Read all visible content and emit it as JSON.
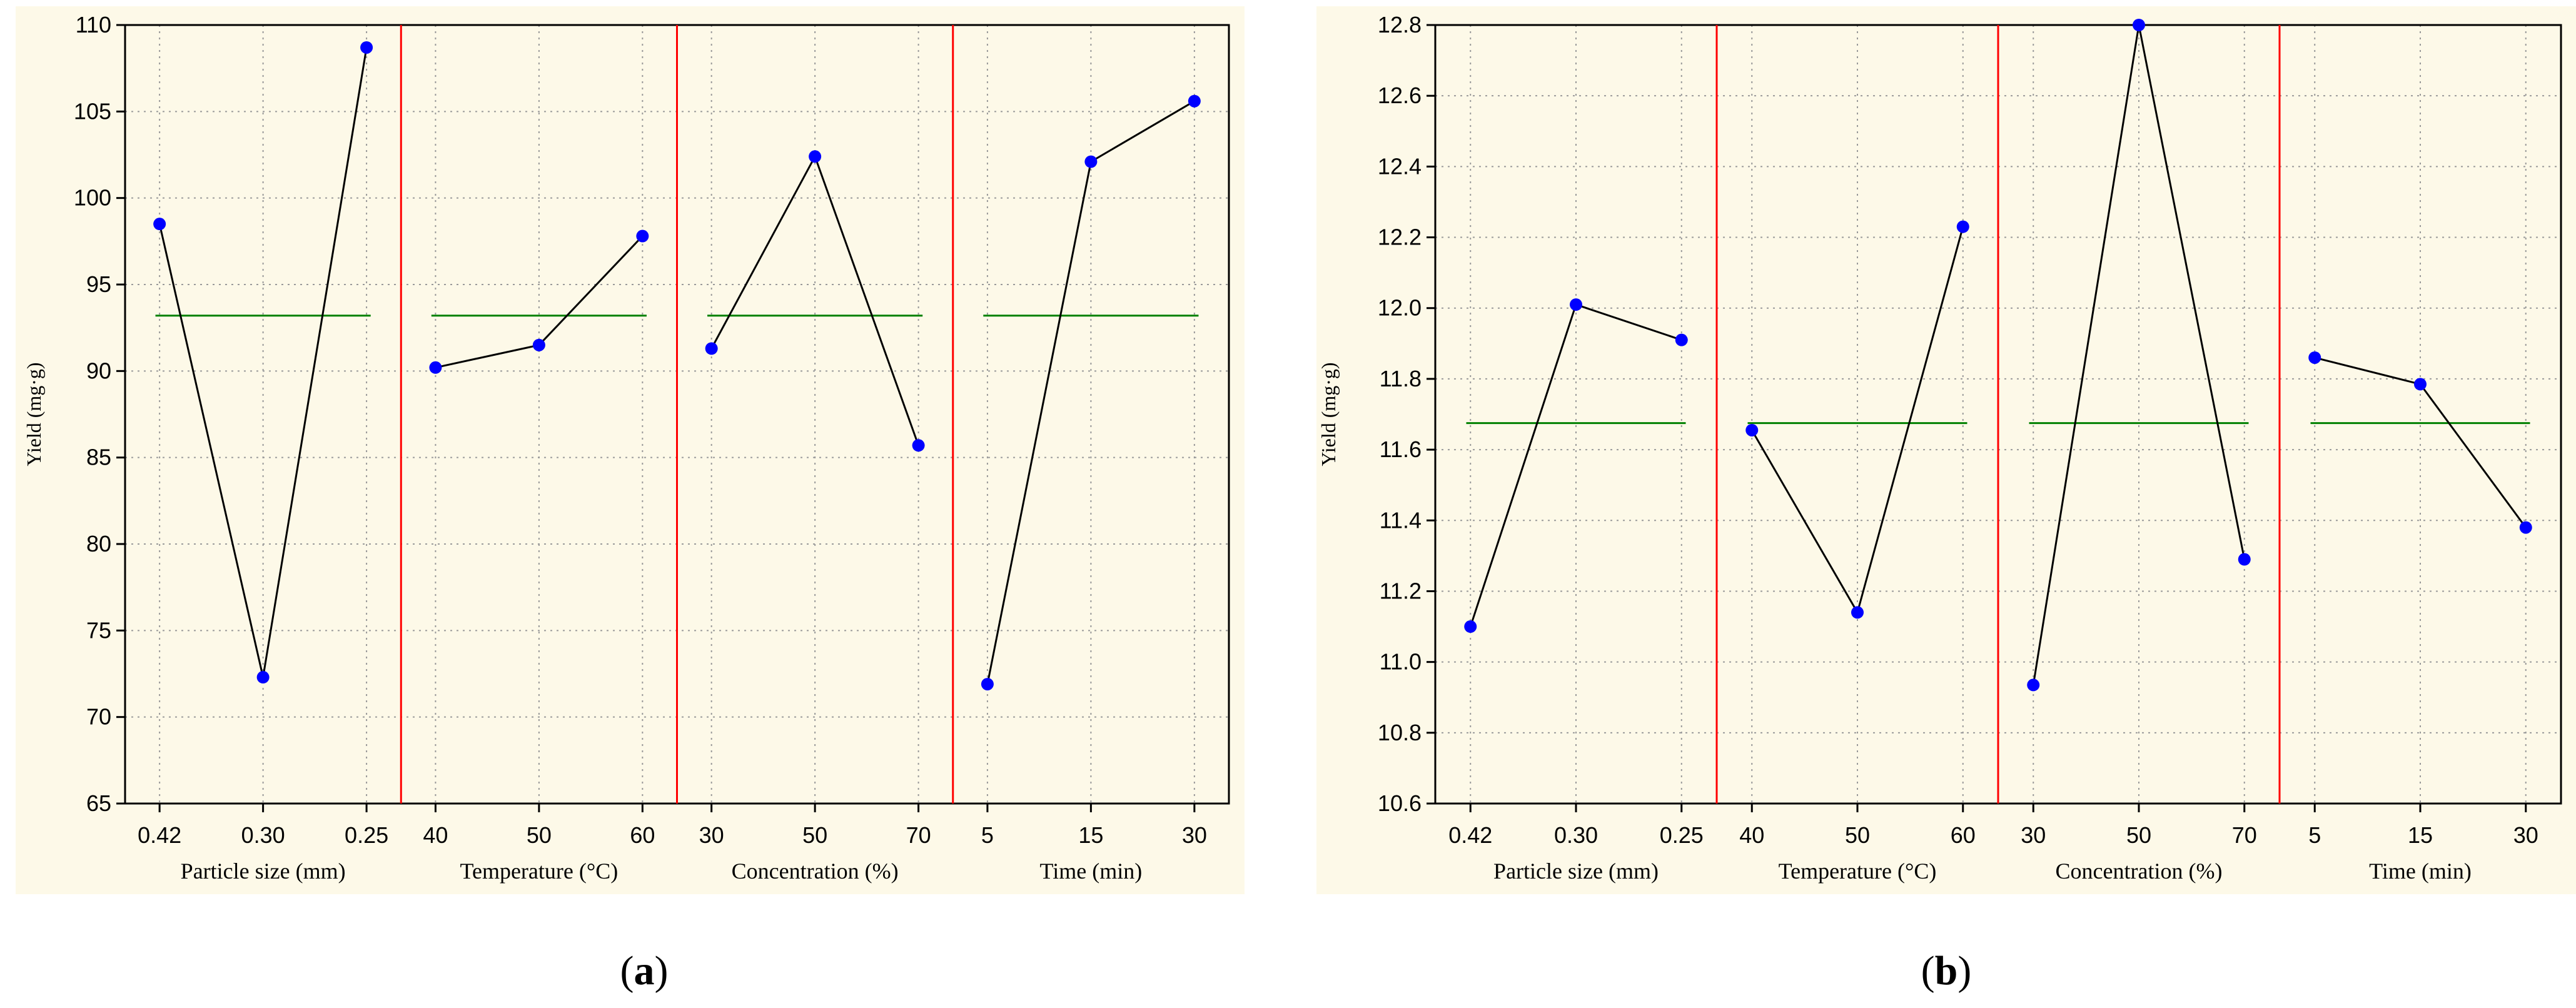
{
  "figure": {
    "captions": [
      {
        "open": "(",
        "letter": "a",
        "close": ")"
      },
      {
        "open": "(",
        "letter": "b",
        "close": ")"
      }
    ]
  },
  "chart_data": [
    {
      "type": "line",
      "ylabel": "Yield (mg·g)",
      "ylim": [
        65,
        110
      ],
      "yticks": [
        65,
        70,
        75,
        80,
        85,
        90,
        95,
        100,
        105,
        110
      ],
      "grid": true,
      "mean_line": 93.2,
      "colors": {
        "points": "#0000ff",
        "line": "#000000",
        "mean": "#008000",
        "divider": "#ff0000"
      },
      "groups": [
        {
          "label": "Particle size (mm)",
          "categories": [
            "0.42",
            "0.30",
            "0.25"
          ],
          "values": [
            98.5,
            72.3,
            108.7
          ]
        },
        {
          "label": "Temperature (°C)",
          "categories": [
            "40",
            "50",
            "60"
          ],
          "values": [
            90.2,
            91.5,
            97.8
          ]
        },
        {
          "label": "Concentration (%)",
          "categories": [
            "30",
            "50",
            "70"
          ],
          "values": [
            91.3,
            102.4,
            85.7
          ]
        },
        {
          "label": "Time (min)",
          "categories": [
            "5",
            "15",
            "30"
          ],
          "values": [
            71.9,
            102.1,
            105.6
          ]
        }
      ]
    },
    {
      "type": "line",
      "ylabel": "Yield (mg·g)",
      "ylim": [
        10.6,
        12.8
      ],
      "yticks": [
        10.6,
        10.8,
        11.0,
        11.2,
        11.4,
        11.6,
        11.8,
        12.0,
        12.2,
        12.4,
        12.6,
        12.8
      ],
      "grid": true,
      "mean_line": 11.675,
      "colors": {
        "points": "#0000ff",
        "line": "#000000",
        "mean": "#008000",
        "divider": "#ff0000"
      },
      "groups": [
        {
          "label": "Particle size (mm)",
          "categories": [
            "0.42",
            "0.30",
            "0.25"
          ],
          "values": [
            11.1,
            12.01,
            11.91
          ]
        },
        {
          "label": "Temperature (°C)",
          "categories": [
            "40",
            "50",
            "60"
          ],
          "values": [
            11.655,
            11.14,
            12.23
          ]
        },
        {
          "label": "Concentration (%)",
          "categories": [
            "30",
            "50",
            "70"
          ],
          "values": [
            10.935,
            12.8,
            11.29
          ]
        },
        {
          "label": "Time (min)",
          "categories": [
            "5",
            "15",
            "30"
          ],
          "values": [
            11.86,
            11.785,
            11.38
          ]
        }
      ]
    }
  ]
}
